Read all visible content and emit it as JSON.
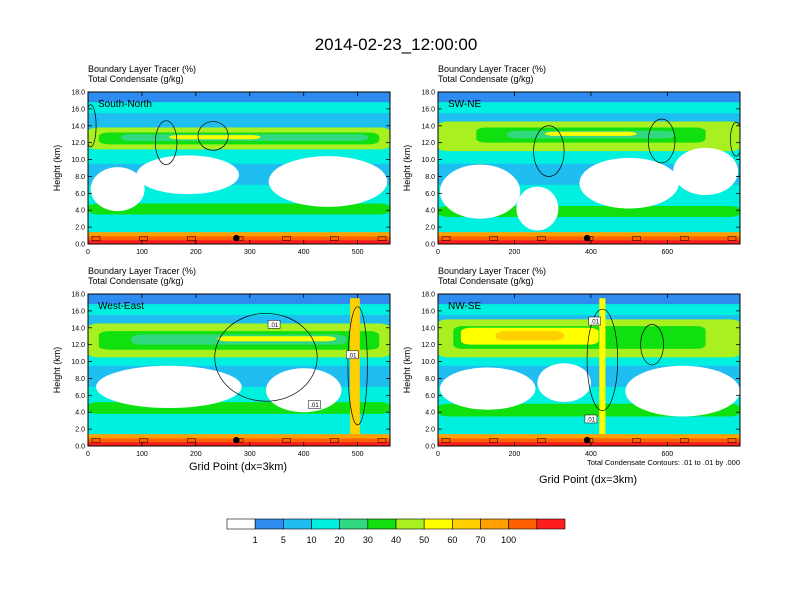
{
  "title": "2014-02-23_12:00:00",
  "left_labels": {
    "line1": "Boundary Layer Tracer   (%)",
    "line2": "Total Condensate   (g/kg)"
  },
  "ylabel": "Height (km)",
  "xlabel": "Grid Point (dx=3km)",
  "contour_note": "Total Condensate Contours: .01 to .01 by .000",
  "contour_label": ".01",
  "colors": {
    "levels": [
      "#ffffff",
      "#2e8cf0",
      "#1ebef0",
      "#00f0e0",
      "#30d880",
      "#10e010",
      "#a8f020",
      "#ffff00",
      "#ffd000",
      "#ffa000",
      "#ff6000",
      "#ff1e1e"
    ],
    "frame": "#000000"
  },
  "chart_data": [
    {
      "type": "heatmap",
      "panel_label": "South-North",
      "xlim": [
        0,
        560
      ],
      "ylim": [
        0,
        18
      ],
      "xticks": [
        0,
        100,
        200,
        300,
        400,
        500
      ],
      "yticks": [
        0,
        2,
        4,
        6,
        8,
        10,
        12,
        14,
        16,
        18
      ],
      "ytick_labels": [
        "0.0",
        "2.0",
        "4.0",
        "6.0",
        "8.0",
        "10.0",
        "12.0",
        "14.0",
        "16.0",
        "18.0"
      ],
      "marker_x": 275,
      "contour_labels": [],
      "bands": [
        {
          "level": 6,
          "x1": 0,
          "x2": 560,
          "y1": 11.2,
          "y2": 13.8
        },
        {
          "level": 5,
          "x1": 20,
          "x2": 540,
          "y1": 11.8,
          "y2": 13.2
        },
        {
          "level": 4,
          "x1": 60,
          "x2": 520,
          "y1": 12.2,
          "y2": 13.0
        },
        {
          "level": 7,
          "x1": 150,
          "x2": 320,
          "y1": 12.4,
          "y2": 12.9
        },
        {
          "level": 5,
          "x1": 0,
          "x2": 560,
          "y1": 3.5,
          "y2": 4.8
        }
      ],
      "white_regions": [
        {
          "cx": 55,
          "cy": 6.5,
          "rx": 50,
          "ry": 2.6
        },
        {
          "cx": 185,
          "cy": 8.2,
          "rx": 95,
          "ry": 2.3
        },
        {
          "cx": 445,
          "cy": 7.4,
          "rx": 110,
          "ry": 3.0
        }
      ],
      "contours": [
        {
          "cx": 145,
          "cy": 12.0,
          "rx": 20,
          "ry": 2.6
        },
        {
          "cx": 232,
          "cy": 12.8,
          "rx": 28,
          "ry": 1.7
        },
        {
          "cx": 5,
          "cy": 14.0,
          "rx": 10,
          "ry": 2.5
        }
      ]
    },
    {
      "type": "heatmap",
      "panel_label": "SW-NE",
      "xlim": [
        0,
        790
      ],
      "ylim": [
        0,
        18
      ],
      "xticks": [
        0,
        200,
        400,
        600
      ],
      "yticks": [
        0,
        2,
        4,
        6,
        8,
        10,
        12,
        14,
        16,
        18
      ],
      "ytick_labels": [
        "0.0",
        "2.0",
        "4.0",
        "6.0",
        "8.0",
        "10.0",
        "12.0",
        "14.0",
        "16.0",
        "18.0"
      ],
      "marker_x": 390,
      "contour_labels": [],
      "bands": [
        {
          "level": 6,
          "x1": 0,
          "x2": 790,
          "y1": 11.0,
          "y2": 14.5
        },
        {
          "level": 5,
          "x1": 100,
          "x2": 700,
          "y1": 12.0,
          "y2": 13.8
        },
        {
          "level": 4,
          "x1": 180,
          "x2": 620,
          "y1": 12.5,
          "y2": 13.4
        },
        {
          "level": 7,
          "x1": 280,
          "x2": 520,
          "y1": 12.8,
          "y2": 13.3
        },
        {
          "level": 5,
          "x1": 0,
          "x2": 790,
          "y1": 3.2,
          "y2": 4.5
        }
      ],
      "white_regions": [
        {
          "cx": 110,
          "cy": 6.2,
          "rx": 105,
          "ry": 3.2
        },
        {
          "cx": 260,
          "cy": 4.2,
          "rx": 55,
          "ry": 2.6
        },
        {
          "cx": 500,
          "cy": 7.2,
          "rx": 130,
          "ry": 3.0
        },
        {
          "cx": 700,
          "cy": 8.6,
          "rx": 85,
          "ry": 2.8
        }
      ],
      "contours": [
        {
          "cx": 290,
          "cy": 11.0,
          "rx": 40,
          "ry": 3.0
        },
        {
          "cx": 585,
          "cy": 12.2,
          "rx": 35,
          "ry": 2.6
        },
        {
          "cx": 780,
          "cy": 12.4,
          "rx": 15,
          "ry": 2.0
        }
      ]
    },
    {
      "type": "heatmap",
      "panel_label": "West-East",
      "xlim": [
        0,
        560
      ],
      "ylim": [
        0,
        18
      ],
      "xticks": [
        0,
        100,
        200,
        300,
        400,
        500
      ],
      "yticks": [
        0,
        2,
        4,
        6,
        8,
        10,
        12,
        14,
        16,
        18
      ],
      "ytick_labels": [
        "0.0",
        "2.0",
        "4.0",
        "6.0",
        "8.0",
        "10.0",
        "12.0",
        "14.0",
        "16.0",
        "18.0"
      ],
      "marker_x": 275,
      "contour_labels": [
        {
          "x": 345,
          "y": 14.4
        },
        {
          "x": 490,
          "y": 10.8
        },
        {
          "x": 420,
          "y": 4.9
        }
      ],
      "bands": [
        {
          "level": 6,
          "x1": 0,
          "x2": 560,
          "y1": 10.5,
          "y2": 14.5
        },
        {
          "level": 5,
          "x1": 20,
          "x2": 540,
          "y1": 11.4,
          "y2": 13.6
        },
        {
          "level": 4,
          "x1": 80,
          "x2": 480,
          "y1": 12.0,
          "y2": 13.2
        },
        {
          "level": 7,
          "x1": 240,
          "x2": 460,
          "y1": 12.4,
          "y2": 13.0
        },
        {
          "level": 5,
          "x1": 0,
          "x2": 560,
          "y1": 3.8,
          "y2": 5.2
        }
      ],
      "white_regions": [
        {
          "cx": 150,
          "cy": 7.0,
          "rx": 135,
          "ry": 2.5
        },
        {
          "cx": 400,
          "cy": 6.6,
          "rx": 70,
          "ry": 2.6
        }
      ],
      "contours": [
        {
          "cx": 330,
          "cy": 10.5,
          "rx": 95,
          "ry": 5.2
        },
        {
          "cx": 500,
          "cy": 9.5,
          "rx": 18,
          "ry": 7.0
        }
      ],
      "towers": [
        {
          "x": 495,
          "w": 18,
          "level": 8
        }
      ]
    },
    {
      "type": "heatmap",
      "panel_label": "NW-SE",
      "xlim": [
        0,
        790
      ],
      "ylim": [
        0,
        18
      ],
      "xticks": [
        0,
        200,
        400,
        600
      ],
      "yticks": [
        0,
        2,
        4,
        6,
        8,
        10,
        12,
        14,
        16,
        18
      ],
      "ytick_labels": [
        "0.0",
        "2.0",
        "4.0",
        "6.0",
        "8.0",
        "10.0",
        "12.0",
        "14.0",
        "16.0",
        "18.0"
      ],
      "marker_x": 390,
      "contour_labels": [
        {
          "x": 410,
          "y": 14.8
        },
        {
          "x": 400,
          "y": 3.2
        }
      ],
      "bands": [
        {
          "level": 6,
          "x1": 0,
          "x2": 790,
          "y1": 10.5,
          "y2": 15.0
        },
        {
          "level": 5,
          "x1": 40,
          "x2": 700,
          "y1": 11.5,
          "y2": 14.2
        },
        {
          "level": 7,
          "x1": 60,
          "x2": 420,
          "y1": 12.0,
          "y2": 14.0
        },
        {
          "level": 8,
          "x1": 150,
          "x2": 330,
          "y1": 12.5,
          "y2": 13.6
        },
        {
          "level": 5,
          "x1": 0,
          "x2": 790,
          "y1": 3.5,
          "y2": 5.0
        }
      ],
      "white_regions": [
        {
          "cx": 130,
          "cy": 6.8,
          "rx": 125,
          "ry": 2.5
        },
        {
          "cx": 330,
          "cy": 7.5,
          "rx": 70,
          "ry": 2.3
        },
        {
          "cx": 640,
          "cy": 6.5,
          "rx": 150,
          "ry": 3.0
        }
      ],
      "contours": [
        {
          "cx": 430,
          "cy": 10.2,
          "rx": 40,
          "ry": 6.0
        },
        {
          "cx": 560,
          "cy": 12.0,
          "rx": 30,
          "ry": 2.4
        }
      ],
      "towers": [
        {
          "x": 430,
          "w": 16,
          "level": 7
        }
      ]
    }
  ],
  "colorbar": {
    "labels": [
      "1",
      "5",
      "10",
      "20",
      "30",
      "40",
      "50",
      "60",
      "70",
      "100"
    ]
  }
}
